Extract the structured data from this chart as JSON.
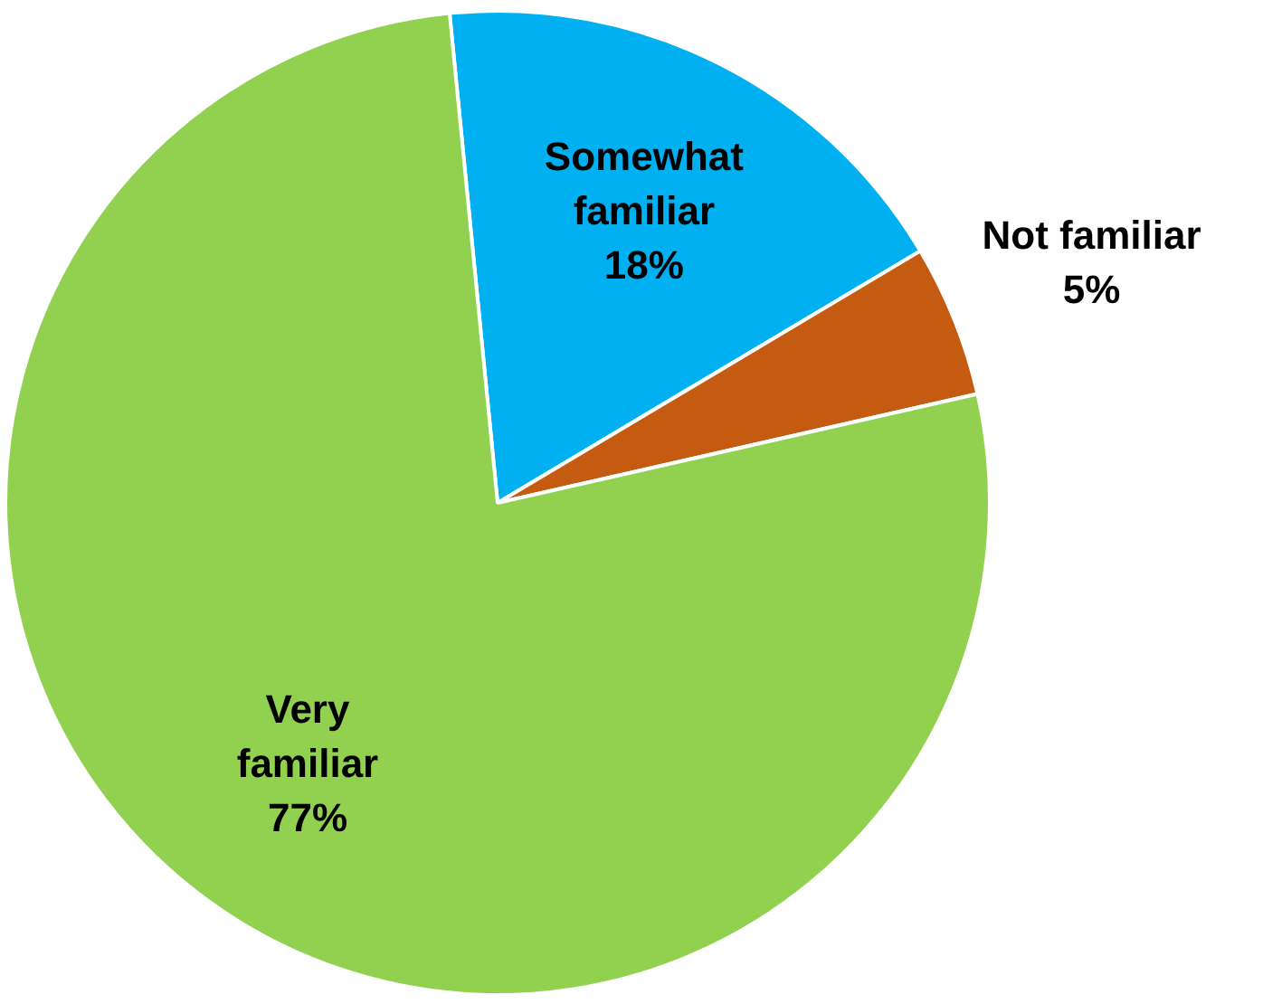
{
  "chart_data": {
    "type": "pie",
    "categories": [
      "Somewhat familiar",
      "Not familiar",
      "Very familiar"
    ],
    "values": [
      18,
      5,
      77
    ],
    "colors": [
      "#00b0f0",
      "#c55a11",
      "#92d050"
    ],
    "value_labels": [
      "18%",
      "5%",
      "77%"
    ]
  }
}
